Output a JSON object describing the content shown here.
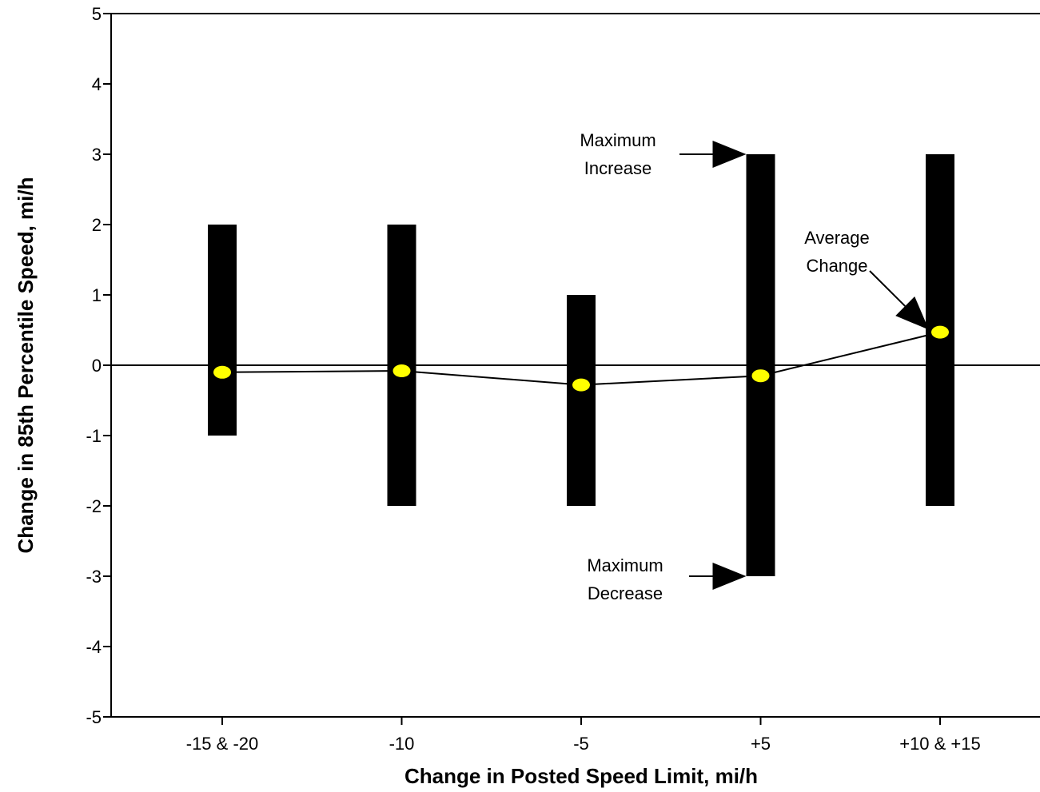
{
  "chart_data": {
    "type": "range-bar",
    "xlabel": "Change in Posted Speed Limit, mi/h",
    "ylabel": "Change in 85th Percentile Speed, mi/h",
    "ylim": [
      -5,
      5
    ],
    "yticks": [
      -5,
      -4,
      -3,
      -2,
      -1,
      0,
      1,
      2,
      3,
      4,
      5
    ],
    "categories": [
      "-15 & -20",
      "-10",
      "-5",
      "+5",
      "+10 & +15"
    ],
    "series": [
      {
        "name": "Maximum Increase",
        "values": [
          2,
          2,
          1,
          3,
          3
        ]
      },
      {
        "name": "Maximum Decrease",
        "values": [
          -1,
          -2,
          -2,
          -3,
          -2
        ]
      },
      {
        "name": "Average Change",
        "values": [
          -0.1,
          -0.08,
          -0.28,
          -0.15,
          0.47
        ]
      }
    ],
    "annotations": {
      "max_increase": [
        "Maximum",
        "Increase"
      ],
      "max_decrease": [
        "Maximum",
        "Decrease"
      ],
      "average_change": [
        "Average",
        "Change"
      ]
    },
    "colors": {
      "bar": "#000000",
      "marker": "#ffff00",
      "line": "#000000"
    },
    "grid": false
  }
}
